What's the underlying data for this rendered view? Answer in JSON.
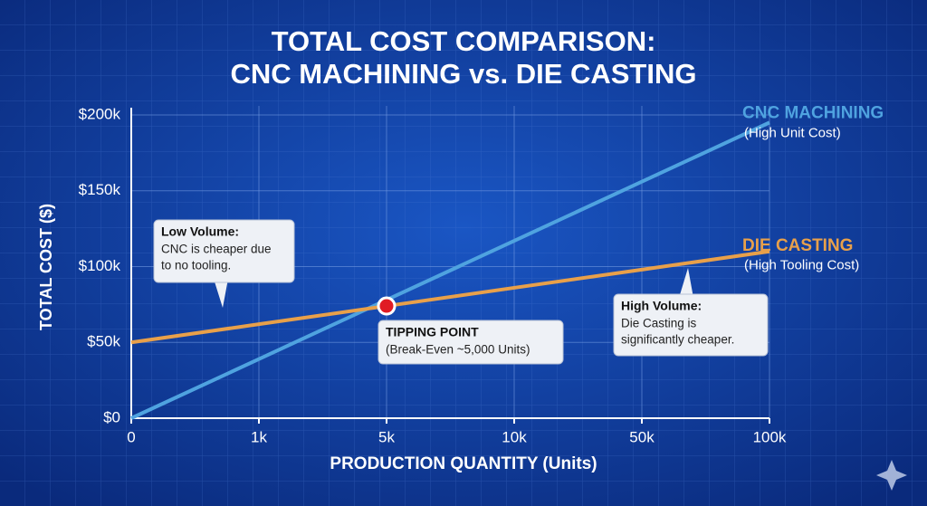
{
  "chart_data": {
    "type": "line",
    "title": [
      "TOTAL COST COMPARISON:",
      "CNC MACHINING vs. DIE CASTING"
    ],
    "x_label": "PRODUCTION QUANTITY (Units)",
    "y_label": "TOTAL COST ($)",
    "categories": [
      "0",
      "1k",
      "5k",
      "10k",
      "50k",
      "100k"
    ],
    "ylim": [
      0,
      200000
    ],
    "yticks": [
      {
        "value": 0,
        "label": "$0"
      },
      {
        "value": 50000,
        "label": "$50k"
      },
      {
        "value": 100000,
        "label": "$100k"
      },
      {
        "value": 150000,
        "label": "$150k"
      },
      {
        "value": 200000,
        "label": "$200k"
      }
    ],
    "grid": true,
    "series": [
      {
        "name": "CNC MACHINING",
        "note": "(High Unit Cost)",
        "color": "#4fa3e0",
        "values": [
          0,
          39000,
          78000,
          117000,
          156000,
          195000
        ]
      },
      {
        "name": "DIE CASTING",
        "note": "(High Tooling Cost)",
        "color": "#e8a04a",
        "values": [
          50000,
          62000,
          74000,
          86000,
          98000,
          110000
        ]
      }
    ],
    "annotations": [
      {
        "title": "Low Volume:",
        "lines": [
          "CNC is cheaper due",
          "to no tooling."
        ]
      },
      {
        "title": "TIPPING POINT",
        "lines": [
          "(Break-Even ~5,000 Units)"
        ]
      },
      {
        "title": "High Volume:",
        "lines": [
          "Die Casting is",
          "significantly cheaper."
        ]
      }
    ]
  }
}
